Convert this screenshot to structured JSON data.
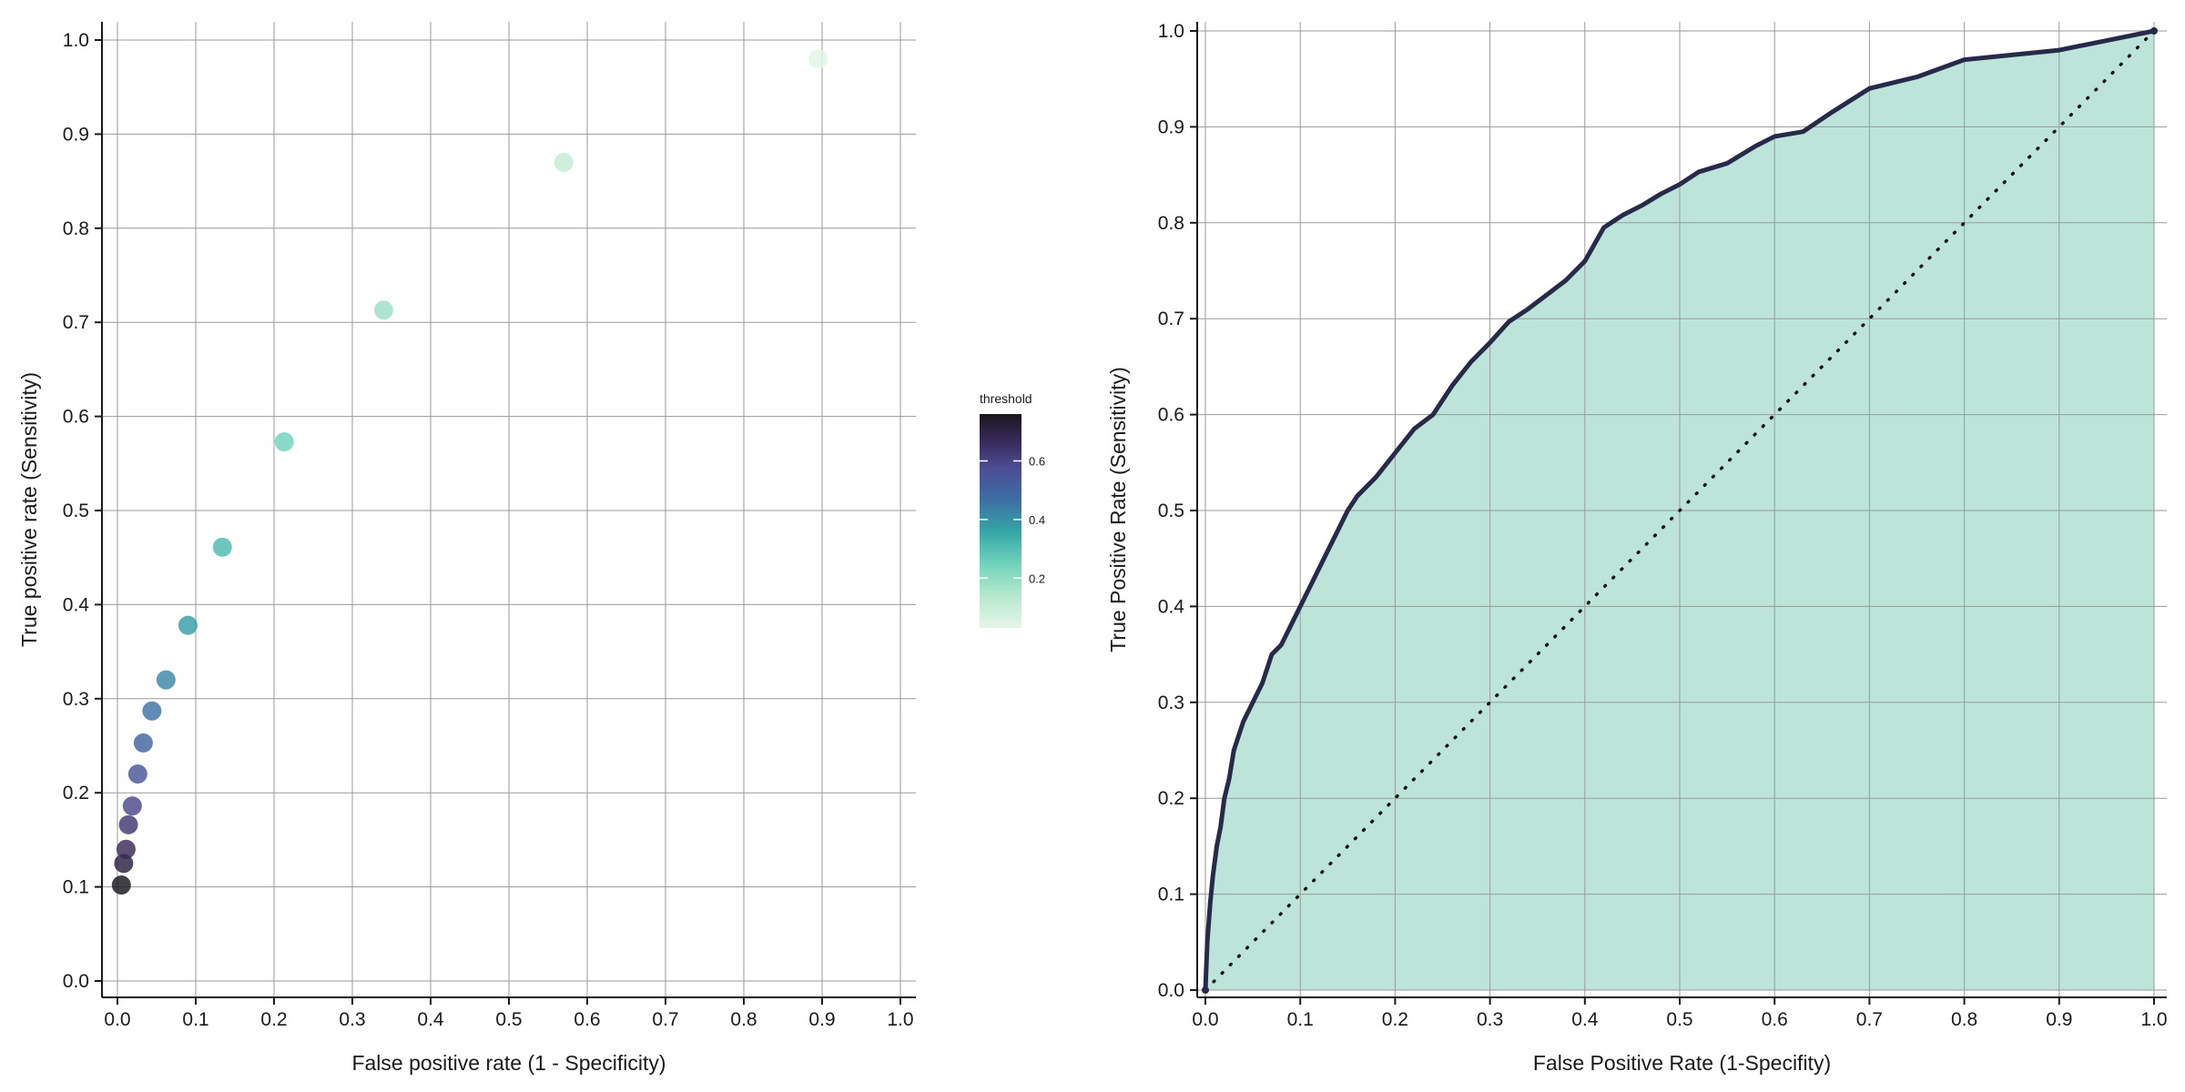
{
  "chart_data": [
    {
      "type": "scatter",
      "xlabel": "False positive rate (1 - Specificity)",
      "ylabel": "True positive rate (Sensitivity)",
      "xlim": [
        0,
        1
      ],
      "ylim": [
        0,
        1
      ],
      "x_ticks": [
        "0.0",
        "0.1",
        "0.2",
        "0.3",
        "0.4",
        "0.5",
        "0.6",
        "0.7",
        "0.8",
        "0.9",
        "1.0"
      ],
      "y_ticks": [
        "0.0",
        "0.1",
        "0.2",
        "0.3",
        "0.4",
        "0.5",
        "0.6",
        "0.7",
        "0.8",
        "0.9",
        "1.0"
      ],
      "grid": true,
      "legend": {
        "title": "threshold",
        "placement": "right",
        "range": [
          0.03,
          0.76
        ],
        "ticks": [
          "0.2",
          "0.4",
          "0.6"
        ],
        "tick_values": [
          0.2,
          0.4,
          0.6
        ]
      },
      "points": [
        {
          "x": 0.005,
          "y": 0.102,
          "threshold": 0.76
        },
        {
          "x": 0.008,
          "y": 0.125,
          "threshold": 0.71
        },
        {
          "x": 0.011,
          "y": 0.14,
          "threshold": 0.67
        },
        {
          "x": 0.014,
          "y": 0.166,
          "threshold": 0.63
        },
        {
          "x": 0.019,
          "y": 0.186,
          "threshold": 0.59
        },
        {
          "x": 0.026,
          "y": 0.22,
          "threshold": 0.55
        },
        {
          "x": 0.033,
          "y": 0.253,
          "threshold": 0.5
        },
        {
          "x": 0.044,
          "y": 0.287,
          "threshold": 0.46
        },
        {
          "x": 0.062,
          "y": 0.32,
          "threshold": 0.42
        },
        {
          "x": 0.09,
          "y": 0.378,
          "threshold": 0.38
        },
        {
          "x": 0.134,
          "y": 0.461,
          "threshold": 0.31
        },
        {
          "x": 0.213,
          "y": 0.573,
          "threshold": 0.25
        },
        {
          "x": 0.34,
          "y": 0.713,
          "threshold": 0.18
        },
        {
          "x": 0.57,
          "y": 0.87,
          "threshold": 0.11
        },
        {
          "x": 0.895,
          "y": 0.98,
          "threshold": 0.04
        }
      ]
    },
    {
      "type": "area",
      "xlabel": "False Positive Rate (1-Specifity)",
      "ylabel": "True Positive Rate (Sensitivity)",
      "xlim": [
        0,
        1
      ],
      "ylim": [
        0,
        1
      ],
      "x_ticks": [
        "0.0",
        "0.1",
        "0.2",
        "0.3",
        "0.4",
        "0.5",
        "0.6",
        "0.7",
        "0.8",
        "0.9",
        "1.0"
      ],
      "y_ticks": [
        "0.0",
        "0.1",
        "0.2",
        "0.3",
        "0.4",
        "0.5",
        "0.6",
        "0.7",
        "0.8",
        "0.9",
        "1.0"
      ],
      "grid": true,
      "fill_color": "#bce4d8",
      "line_color": "#272a48",
      "reference_line": "dotted diagonal",
      "curve": {
        "x": [
          0.0,
          0.002,
          0.005,
          0.008,
          0.012,
          0.016,
          0.02,
          0.025,
          0.03,
          0.04,
          0.05,
          0.06,
          0.07,
          0.08,
          0.09,
          0.1,
          0.11,
          0.12,
          0.13,
          0.14,
          0.15,
          0.16,
          0.18,
          0.2,
          0.22,
          0.24,
          0.26,
          0.28,
          0.3,
          0.32,
          0.34,
          0.36,
          0.38,
          0.4,
          0.42,
          0.44,
          0.46,
          0.48,
          0.5,
          0.52,
          0.55,
          0.58,
          0.6,
          0.63,
          0.66,
          0.7,
          0.75,
          0.8,
          0.85,
          0.9,
          0.95,
          1.0
        ],
        "y": [
          0.0,
          0.05,
          0.09,
          0.12,
          0.15,
          0.17,
          0.2,
          0.22,
          0.25,
          0.28,
          0.3,
          0.32,
          0.35,
          0.36,
          0.38,
          0.4,
          0.42,
          0.44,
          0.46,
          0.48,
          0.5,
          0.515,
          0.535,
          0.56,
          0.585,
          0.6,
          0.63,
          0.655,
          0.675,
          0.697,
          0.71,
          0.725,
          0.74,
          0.76,
          0.795,
          0.808,
          0.818,
          0.83,
          0.84,
          0.853,
          0.862,
          0.88,
          0.89,
          0.895,
          0.915,
          0.94,
          0.952,
          0.97,
          0.975,
          0.98,
          0.99,
          1.0
        ]
      }
    }
  ]
}
